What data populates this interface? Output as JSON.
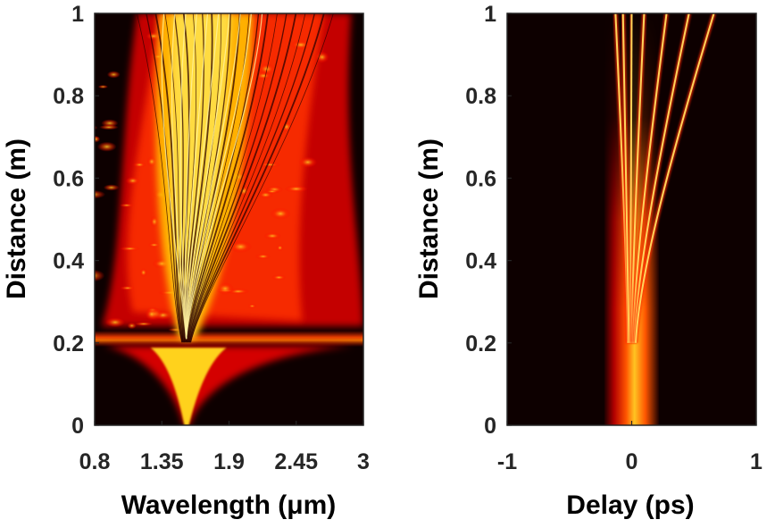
{
  "chart_data": [
    {
      "type": "heatmap",
      "panel": "left",
      "xlabel": "Wavelength (μm)",
      "ylabel": "Distance (m)",
      "x_ticks": [
        "0.8",
        "1.35",
        "1.9",
        "2.45",
        "3"
      ],
      "y_ticks": [
        "0",
        "0.2",
        "0.4",
        "0.6",
        "0.8",
        "1"
      ],
      "xlim": [
        0.8,
        3
      ],
      "ylim": [
        0,
        1
      ],
      "colormap": "hot",
      "features": {
        "pump_wavelength": 1.55,
        "soliton_fission_distance": 0.21,
        "broadened_span_at_1m": [
          1.0,
          2.9
        ]
      }
    },
    {
      "type": "heatmap",
      "panel": "right",
      "xlabel": "Delay (ps)",
      "ylabel": "Distance (m)",
      "x_ticks": [
        "-1",
        "0",
        "1"
      ],
      "y_ticks": [
        "0",
        "0.2",
        "0.4",
        "0.6",
        "0.8",
        "1"
      ],
      "xlim": [
        -1,
        1
      ],
      "ylim": [
        0,
        1
      ],
      "colormap": "hot",
      "features": {
        "input_pulse_halfwidth_ps": 0.22,
        "fission_distance": 0.2,
        "soliton_delays_at_1m": [
          -0.13,
          -0.07,
          0.0,
          0.1,
          0.28,
          0.46,
          0.66
        ]
      }
    }
  ],
  "colors": {
    "background": "#0d0000",
    "low": "#8b0000",
    "mid": "#ff2a00",
    "high": "#ffd21a",
    "peak": "#fffbd0"
  }
}
